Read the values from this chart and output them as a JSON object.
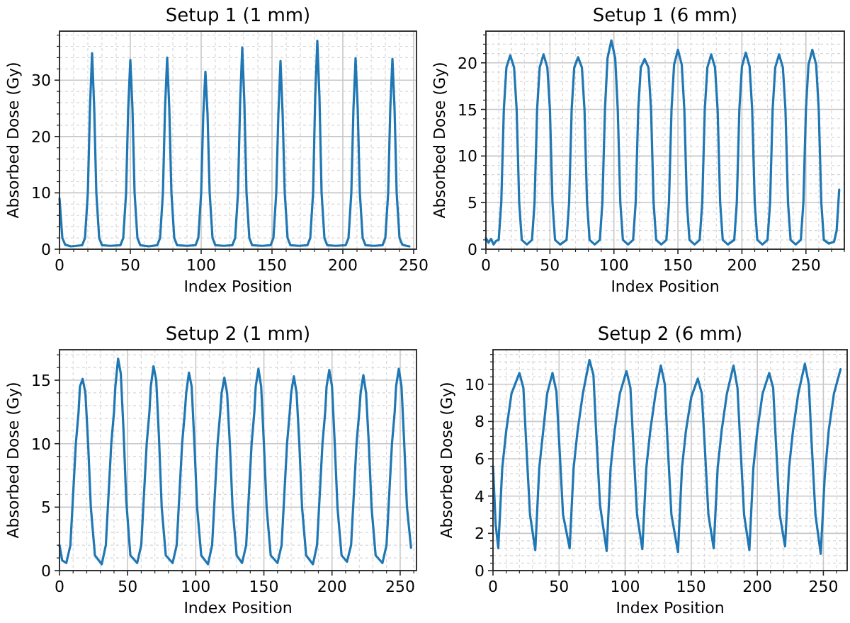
{
  "chart_data": [
    {
      "type": "line",
      "title": "Setup 1 (1 mm)",
      "xlabel": "Index Position",
      "ylabel": "Absorbed Dose (Gy)",
      "xlim": [
        0,
        252
      ],
      "ylim": [
        0,
        38.7
      ],
      "xticks": [
        0,
        50,
        100,
        150,
        200,
        250
      ],
      "yticks": [
        0,
        10,
        20,
        30
      ],
      "grid": true,
      "series": [
        {
          "color": "#1f77b4",
          "x": [
            0,
            2,
            4,
            8,
            12,
            16,
            18,
            20,
            21.5,
            23,
            24.5,
            26,
            28,
            30,
            36,
            43,
            45,
            47,
            48.5,
            50,
            51.5,
            53,
            55,
            57,
            63,
            69,
            71,
            73,
            74.5,
            76,
            77.5,
            79,
            81,
            83,
            90,
            96,
            98,
            100,
            101.5,
            103,
            104.5,
            106,
            108,
            110,
            116,
            122,
            124,
            126,
            127.5,
            129,
            130.5,
            132,
            134,
            136,
            143,
            149,
            151,
            153,
            154.5,
            156,
            157.5,
            159,
            161,
            163,
            169,
            175,
            177,
            179,
            180.5,
            182,
            183.5,
            185,
            187,
            189,
            195,
            202,
            204,
            206,
            207.5,
            209,
            210.5,
            212,
            214,
            216,
            222,
            228,
            230,
            232,
            233.5,
            235,
            236.5,
            238,
            240,
            242,
            245,
            247
          ],
          "values": [
            9,
            2,
            0.8,
            0.5,
            0.6,
            0.7,
            2,
            10,
            25,
            34.8,
            25,
            10,
            2,
            0.7,
            0.6,
            0.7,
            2,
            10,
            25,
            33.6,
            25,
            10,
            2,
            0.7,
            0.5,
            0.7,
            2,
            10,
            25,
            34,
            25,
            10,
            2,
            0.7,
            0.6,
            0.7,
            2,
            10,
            24,
            31.5,
            24,
            10,
            2,
            0.7,
            0.6,
            0.7,
            2,
            10,
            26,
            35.8,
            26,
            10,
            2,
            0.7,
            0.6,
            0.7,
            2,
            10,
            24,
            33.4,
            24,
            10,
            2,
            0.7,
            0.6,
            0.7,
            2,
            10,
            27,
            37,
            27,
            10,
            2,
            0.7,
            0.6,
            0.7,
            2,
            10,
            25,
            33.9,
            25,
            10,
            2,
            0.7,
            0.6,
            0.7,
            2,
            10,
            25,
            33.8,
            25,
            10,
            2,
            0.8,
            0.6,
            0.5
          ]
        }
      ]
    },
    {
      "type": "line",
      "title": "Setup 1 (6 mm)",
      "xlabel": "Index Position",
      "ylabel": "Absorbed Dose (Gy)",
      "xlim": [
        0,
        280
      ],
      "ylim": [
        0,
        23.4
      ],
      "xticks": [
        0,
        50,
        100,
        150,
        200,
        250
      ],
      "yticks": [
        0,
        5,
        10,
        15,
        20
      ],
      "grid": true,
      "series": [
        {
          "color": "#1f77b4",
          "x": [
            0,
            2,
            4,
            6,
            8,
            10,
            12,
            14,
            16,
            19,
            22,
            24,
            26,
            28,
            32,
            36,
            38,
            40,
            42,
            45,
            48,
            50,
            52,
            54,
            58,
            63,
            65,
            67,
            69,
            72,
            75,
            77,
            79,
            81,
            85,
            89,
            91,
            93,
            95,
            98,
            101,
            103,
            105,
            107,
            111,
            115,
            117,
            119,
            121,
            124,
            127,
            129,
            131,
            133,
            137,
            141,
            143,
            145,
            147,
            150,
            153,
            155,
            157,
            159,
            163,
            167,
            169,
            171,
            173,
            176,
            179,
            181,
            183,
            185,
            189,
            194,
            196,
            198,
            200,
            203,
            206,
            208,
            210,
            212,
            216,
            220,
            222,
            224,
            226,
            229,
            232,
            234,
            236,
            238,
            242,
            246,
            248,
            250,
            252,
            255,
            258,
            260,
            262,
            264,
            268,
            272,
            274,
            276
          ],
          "values": [
            1.2,
            0.7,
            1.1,
            0.5,
            0.9,
            1,
            5,
            15,
            19.5,
            20.8,
            19.5,
            15,
            5,
            1,
            0.5,
            1,
            5,
            15,
            19.5,
            20.9,
            19.5,
            15,
            5,
            1,
            0.5,
            1,
            5,
            15,
            19.5,
            20.6,
            19.5,
            15,
            5,
            1,
            0.5,
            1,
            5,
            15,
            20.5,
            22.4,
            20.5,
            15,
            5,
            1,
            0.5,
            1,
            5,
            15,
            19.5,
            20.4,
            19.5,
            15,
            5,
            1,
            0.5,
            1,
            5,
            15,
            19.8,
            21.4,
            19.8,
            15,
            5,
            1,
            0.5,
            1,
            5,
            15,
            19.5,
            20.9,
            19.5,
            15,
            5,
            1,
            0.5,
            1,
            5,
            15,
            19.6,
            21.1,
            19.6,
            15,
            5,
            1,
            0.5,
            1,
            5,
            15,
            19.5,
            20.9,
            19.5,
            15,
            5,
            1,
            0.5,
            1,
            5,
            15,
            19.8,
            21.4,
            19.8,
            15,
            5,
            1,
            0.6,
            0.8,
            2,
            6.4
          ]
        }
      ]
    },
    {
      "type": "line",
      "title": "Setup 2 (1 mm)",
      "xlabel": "Index Position",
      "ylabel": "Absorbed Dose (Gy)",
      "xlim": [
        0,
        262
      ],
      "ylim": [
        0,
        17.4
      ],
      "xticks": [
        0,
        50,
        100,
        150,
        200,
        250
      ],
      "yticks": [
        0,
        5,
        10,
        15
      ],
      "grid": true,
      "series": [
        {
          "color": "#1f77b4",
          "x": [
            0,
            2,
            5,
            8,
            10,
            12,
            14,
            15,
            17,
            19,
            21,
            23,
            26,
            31,
            34,
            36,
            38,
            40,
            41,
            43,
            45,
            47,
            49,
            52,
            57,
            60,
            62,
            64,
            66,
            67,
            69,
            71,
            73,
            75,
            78,
            83,
            86,
            88,
            90,
            92,
            93,
            95,
            97,
            99,
            101,
            104,
            109,
            112,
            114,
            116,
            118,
            119,
            121,
            123,
            125,
            127,
            130,
            134,
            137,
            139,
            141,
            143,
            144,
            146,
            148,
            150,
            152,
            155,
            160,
            163,
            165,
            167,
            169,
            170,
            172,
            174,
            176,
            178,
            181,
            186,
            189,
            191,
            193,
            195,
            196,
            198,
            200,
            202,
            204,
            207,
            211,
            214,
            216,
            218,
            220,
            221,
            223,
            225,
            227,
            229,
            232,
            237,
            240,
            242,
            244,
            246,
            247,
            249,
            251,
            253,
            255,
            258
          ],
          "values": [
            2,
            0.8,
            0.6,
            2,
            6,
            10,
            12.5,
            14.5,
            15.1,
            14,
            10,
            5,
            1.2,
            0.5,
            2,
            6,
            10,
            12.5,
            14.5,
            16.7,
            15.5,
            11,
            5.5,
            1.2,
            0.6,
            2,
            6,
            10,
            12.5,
            14.5,
            16.1,
            15,
            10.5,
            5,
            1.2,
            0.6,
            2,
            6,
            10,
            12.5,
            14,
            15.6,
            14.5,
            10,
            5,
            1.2,
            0.5,
            2,
            6,
            10,
            12.5,
            14,
            15.2,
            14,
            10,
            5,
            1.2,
            0.6,
            2,
            6,
            10,
            12.5,
            14.5,
            15.9,
            14.5,
            10,
            5,
            1.2,
            0.6,
            2,
            6,
            10,
            12.5,
            14,
            15.3,
            14,
            10,
            5,
            1.2,
            0.5,
            2,
            6,
            10,
            12.5,
            14.5,
            15.8,
            14.5,
            10,
            5,
            1.2,
            0.7,
            2,
            6,
            10,
            12.5,
            14,
            15.4,
            14,
            10,
            5,
            1.2,
            0.6,
            2,
            6,
            10,
            12.5,
            14.5,
            15.9,
            14.5,
            10,
            5,
            1.8
          ]
        }
      ]
    },
    {
      "type": "line",
      "title": "Setup 2 (6 mm)",
      "xlabel": "Index Position",
      "ylabel": "Absorbed Dose (Gy)",
      "xlim": [
        0,
        268
      ],
      "ylim": [
        0,
        11.85
      ],
      "xticks": [
        0,
        50,
        100,
        150,
        200,
        250
      ],
      "yticks": [
        0,
        2,
        4,
        6,
        8,
        10
      ],
      "grid": true,
      "series": [
        {
          "color": "#1f77b4",
          "x": [
            0,
            2,
            4,
            7,
            10,
            14,
            20,
            23,
            25,
            28,
            32,
            35,
            38,
            41,
            45,
            48,
            50,
            53,
            58,
            61,
            64,
            68,
            73,
            76,
            78,
            81,
            86,
            89,
            92,
            96,
            101,
            104,
            106,
            109,
            113,
            116,
            119,
            123,
            127,
            130,
            132,
            135,
            140,
            143,
            146,
            150,
            155,
            158,
            160,
            163,
            167,
            170,
            173,
            177,
            182,
            185,
            187,
            190,
            194,
            197,
            200,
            204,
            209,
            212,
            214,
            217,
            221,
            224,
            227,
            231,
            236,
            239,
            241,
            244,
            248,
            251,
            254,
            258,
            263
          ],
          "values": [
            5.6,
            2.5,
            1.2,
            5.5,
            7.5,
            9.5,
            10.6,
            9.8,
            7,
            3,
            1.1,
            5.5,
            7.5,
            9.5,
            10.6,
            9.6,
            7,
            3,
            1.2,
            5.5,
            7.5,
            9.5,
            11.3,
            10.5,
            7.5,
            3.5,
            1.05,
            5.5,
            7.5,
            9.5,
            10.7,
            9.8,
            7,
            3,
            1.15,
            5.5,
            7.5,
            9.5,
            11,
            10,
            7,
            3,
            1,
            5.5,
            7.5,
            9.3,
            10.3,
            9.5,
            7,
            3,
            1.2,
            5.5,
            7.5,
            9.5,
            11,
            9.8,
            7,
            3,
            1.1,
            5.5,
            7.5,
            9.5,
            10.6,
            9.8,
            7,
            3,
            1.3,
            5.5,
            7.5,
            9.5,
            11.1,
            10,
            7,
            3,
            0.9,
            5,
            7.5,
            9.5,
            10.8
          ]
        }
      ]
    }
  ]
}
